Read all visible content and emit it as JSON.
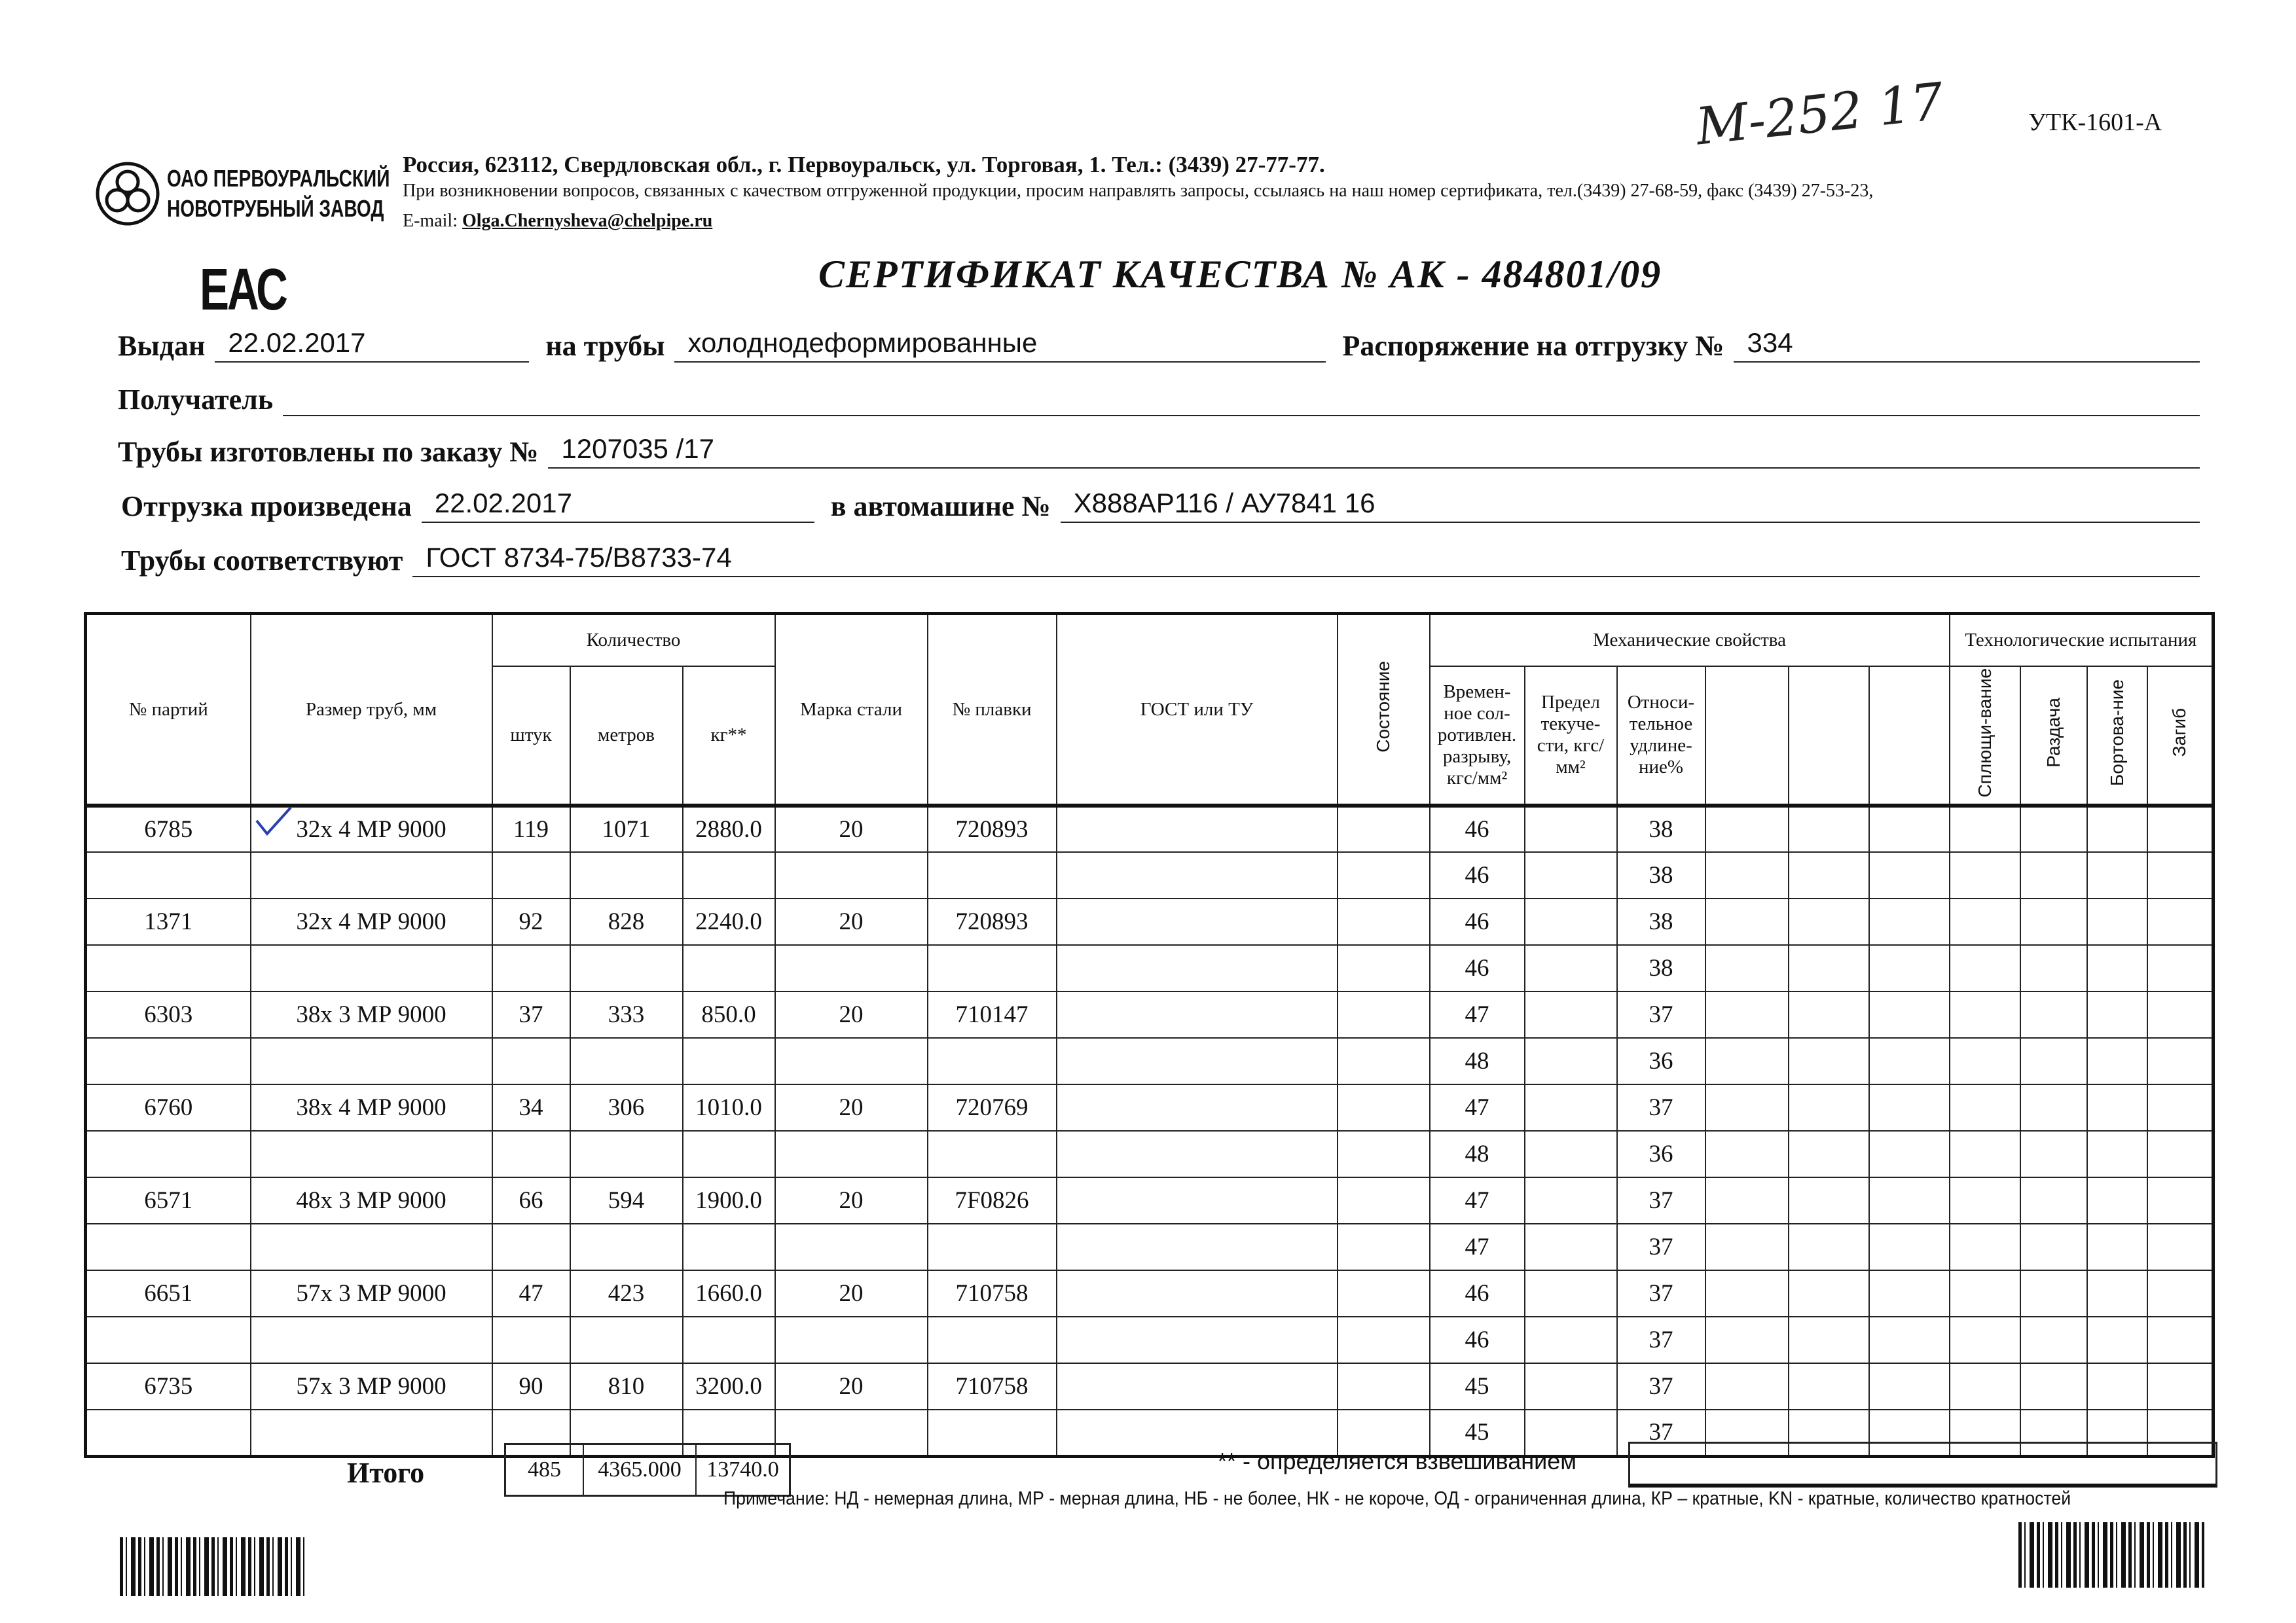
{
  "handwritten_number": "М-252 17",
  "form_code": "УТК-1601-А",
  "company": {
    "logo_line1": "ОАО ПЕРВОУРАЛЬСКИЙ",
    "logo_line2": "НОВОТРУБНЫЙ ЗАВОД",
    "address": "Россия, 623112, Свердловская обл., г. Первоуральск, ул. Торговая, 1. Тел.: (3439) 27-77-77.",
    "contact_note": "При возникновении вопросов, связанных с качеством отгруженной продукции, просим направлять запросы, ссылаясь на наш номер сертификата, тел.(3439) 27-68-59, факс (3439) 27-53-23,",
    "email_label": "E-mail:",
    "email": "Olga.Chernysheva@chelpipe.ru"
  },
  "eac_mark": "ЕАС",
  "title": "СЕРТИФИКАТ КАЧЕСТВА   №  АК -  484801/09",
  "fields": {
    "issued_label": "Выдан",
    "issued": "22.02.2017",
    "pipes_label": "на трубы",
    "pipes": "холоднодеформированные",
    "order_dispatch_label": "Распоряжение на отгрузку №",
    "order_dispatch": "334",
    "recipient_label": "Получатель",
    "recipient": "",
    "made_order_label": "Трубы изготовлены по заказу №",
    "made_order": "1207035   /17",
    "shipped_label": "Отгрузка произведена",
    "shipped": "22.02.2017",
    "truck_label": "в автомашине №",
    "truck": "Х888АР116 / АУ7841 16",
    "conform_label": "Трубы соответствуют",
    "conform": "ГОСТ 8734-75/В8733-74"
  },
  "table": {
    "headers": {
      "batch": "№ партий",
      "size": "Размер труб, мм",
      "quantity": "Количество",
      "pieces": "штук",
      "meters": "метров",
      "kg": "кг**",
      "grade": "Марка стали",
      "heat": "№ плавки",
      "gost": "ГОСТ или ТУ",
      "state": "Состояние",
      "mech": "Механические свойства",
      "tensile": "Времен-ное сол-ротивлен. разрыву, кгс/мм²",
      "yield": "Предел текуче-сти, кгс/мм²",
      "elong": "Относи-тельное удлине-ние%",
      "tech": "Технологические испытания",
      "flatten": "Сплющи-вание",
      "expand": "Раздача",
      "flange": "Бортова-ние",
      "bend": "Загиб"
    },
    "rows": [
      {
        "batch": "6785",
        "size": "32х 4 МР 9000",
        "pieces": "119",
        "meters": "1071",
        "kg": "2880.0",
        "grade": "20",
        "heat": "720893",
        "mech": [
          [
            "46",
            "38"
          ],
          [
            "46",
            "38"
          ]
        ]
      },
      {
        "batch": "1371",
        "size": "32х 4 МР 9000",
        "pieces": "92",
        "meters": "828",
        "kg": "2240.0",
        "grade": "20",
        "heat": "720893",
        "mech": [
          [
            "46",
            "38"
          ],
          [
            "46",
            "38"
          ]
        ]
      },
      {
        "batch": "6303",
        "size": "38х 3 МР 9000",
        "pieces": "37",
        "meters": "333",
        "kg": "850.0",
        "grade": "20",
        "heat": "710147",
        "mech": [
          [
            "47",
            "37"
          ],
          [
            "48",
            "36"
          ]
        ]
      },
      {
        "batch": "6760",
        "size": "38х 4 МР 9000",
        "pieces": "34",
        "meters": "306",
        "kg": "1010.0",
        "grade": "20",
        "heat": "720769",
        "mech": [
          [
            "47",
            "37"
          ],
          [
            "48",
            "36"
          ]
        ]
      },
      {
        "batch": "6571",
        "size": "48х 3 МР 9000",
        "pieces": "66",
        "meters": "594",
        "kg": "1900.0",
        "grade": "20",
        "heat": "7F0826",
        "mech": [
          [
            "47",
            "37"
          ],
          [
            "47",
            "37"
          ]
        ]
      },
      {
        "batch": "6651",
        "size": "57х 3 МР 9000",
        "pieces": "47",
        "meters": "423",
        "kg": "1660.0",
        "grade": "20",
        "heat": "710758",
        "mech": [
          [
            "46",
            "37"
          ],
          [
            "46",
            "37"
          ]
        ]
      },
      {
        "batch": "6735",
        "size": "57х 3 МР 9000",
        "pieces": "90",
        "meters": "810",
        "kg": "3200.0",
        "grade": "20",
        "heat": "710758",
        "mech": [
          [
            "45",
            "37"
          ],
          [
            "45",
            "37"
          ]
        ]
      }
    ]
  },
  "totals": {
    "label": "Итого",
    "pieces": "485",
    "meters": "4365.000",
    "kg": "13740.0"
  },
  "weigh_note": "** - определяется взвешиванием",
  "footnote": "Примечание: НД - немерная длина, МР - мерная длина, НБ - не более, НК - не короче, ОД - ограниченная длина, КР – кратные, KN - кратные, количество кратностей",
  "colors": {
    "ink": "#111111",
    "checkmark": "#2a3fb0"
  }
}
